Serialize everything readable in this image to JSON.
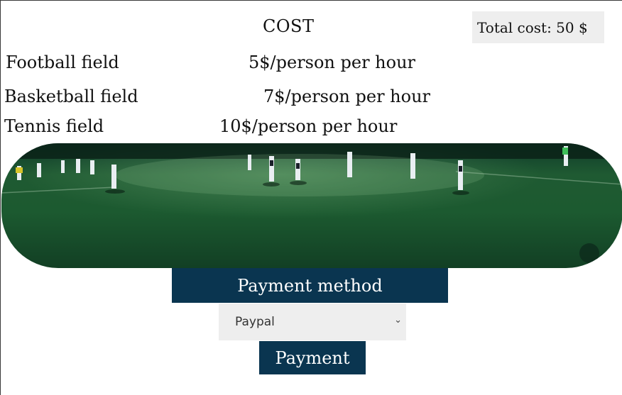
{
  "header": {
    "cost_heading": "COST",
    "total_label": "Total cost: 50 $"
  },
  "prices": [
    {
      "field": "Football field",
      "price": "5$/person per hour"
    },
    {
      "field": "Basketball field",
      "price": "7$/person per hour"
    },
    {
      "field": "Tennis field",
      "price": "10$/person per hour"
    }
  ],
  "banner": {
    "icon": "football-field-photo"
  },
  "payment": {
    "method_label": "Payment method",
    "select_value": "Paypal",
    "select_icon": "chevron-down-icon",
    "button_label": "Payment"
  },
  "colors": {
    "accent": "#0a3550",
    "box_bg": "#eeeeee"
  }
}
